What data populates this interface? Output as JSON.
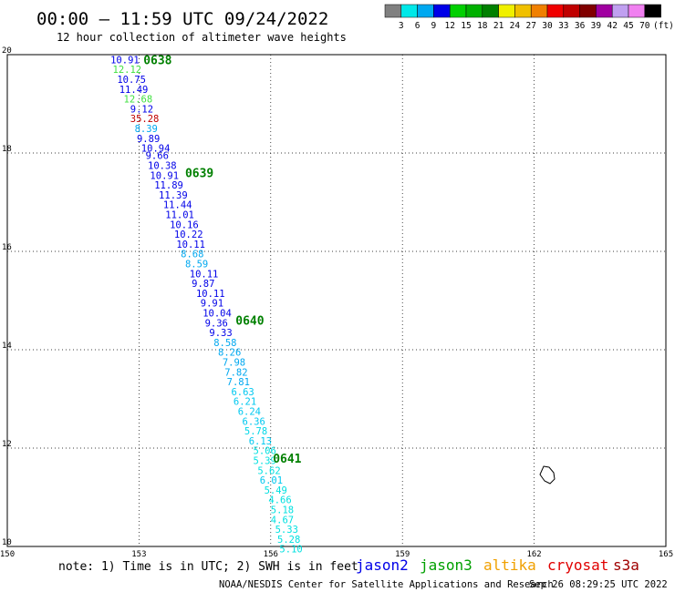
{
  "header": {
    "title": "00:00 – 11:59 UTC 09/24/2022",
    "subtitle": "12 hour collection of altimeter wave heights"
  },
  "legend": {
    "unit": "(ft)",
    "bins": [
      {
        "label": "3",
        "color": "#808080"
      },
      {
        "label": "6",
        "color": "#00e8e8"
      },
      {
        "label": "9",
        "color": "#00a8f0"
      },
      {
        "label": "12",
        "color": "#0000e8"
      },
      {
        "label": "15",
        "color": "#00d000"
      },
      {
        "label": "18",
        "color": "#00b000"
      },
      {
        "label": "21",
        "color": "#008000"
      },
      {
        "label": "24",
        "color": "#f0f000"
      },
      {
        "label": "27",
        "color": "#f0c000"
      },
      {
        "label": "30",
        "color": "#f08000"
      },
      {
        "label": "33",
        "color": "#f00000"
      },
      {
        "label": "36",
        "color": "#c00000"
      },
      {
        "label": "39",
        "color": "#800000"
      },
      {
        "label": "42",
        "color": "#a000a0"
      },
      {
        "label": "45",
        "color": "#c0a0f0"
      },
      {
        "label": "70",
        "color": "#f080f0"
      },
      {
        "label": "",
        "color": "#000000"
      }
    ]
  },
  "map": {
    "x_ticks": [
      "150",
      "153",
      "156",
      "159",
      "162",
      "165"
    ],
    "y_ticks": [
      "20",
      "18",
      "16",
      "14",
      "12",
      "10"
    ],
    "lon_range": [
      150,
      165
    ],
    "lat_range": [
      10,
      20
    ],
    "grid": "dotted"
  },
  "track": {
    "time_labels": [
      {
        "text": "0638",
        "lon": 153.1,
        "lat": 19.9
      },
      {
        "text": "0639",
        "lon": 154.05,
        "lat": 17.6
      },
      {
        "text": "0640",
        "lon": 155.2,
        "lat": 14.6
      },
      {
        "text": "0641",
        "lon": 156.05,
        "lat": 11.8
      }
    ],
    "points": [
      {
        "v": "10.91",
        "lon": 152.35,
        "lat": 19.9,
        "color": "#0000e8"
      },
      {
        "v": "12.12",
        "lon": 152.4,
        "lat": 19.7,
        "color": "#40e040"
      },
      {
        "v": "10.75",
        "lon": 152.5,
        "lat": 19.5,
        "color": "#0000e8"
      },
      {
        "v": "11.49",
        "lon": 152.55,
        "lat": 19.3,
        "color": "#0000e8"
      },
      {
        "v": "12.68",
        "lon": 152.65,
        "lat": 19.1,
        "color": "#40e040"
      },
      {
        "v": "9.12",
        "lon": 152.8,
        "lat": 18.9,
        "color": "#0000e8"
      },
      {
        "v": "35.28",
        "lon": 152.8,
        "lat": 18.7,
        "color": "#c00000"
      },
      {
        "v": "8.39",
        "lon": 152.9,
        "lat": 18.5,
        "color": "#00a8f0"
      },
      {
        "v": "9.89",
        "lon": 152.95,
        "lat": 18.3,
        "color": "#0000e8"
      },
      {
        "v": "10.94",
        "lon": 153.05,
        "lat": 18.1,
        "color": "#0000e8"
      },
      {
        "v": "9.66",
        "lon": 153.15,
        "lat": 17.95,
        "color": "#0000e8"
      },
      {
        "v": "10.38",
        "lon": 153.2,
        "lat": 17.75,
        "color": "#0000e8"
      },
      {
        "v": "10.91",
        "lon": 153.25,
        "lat": 17.55,
        "color": "#0000e8"
      },
      {
        "v": "11.89",
        "lon": 153.35,
        "lat": 17.35,
        "color": "#0000e8"
      },
      {
        "v": "11.39",
        "lon": 153.45,
        "lat": 17.15,
        "color": "#0000e8"
      },
      {
        "v": "11.44",
        "lon": 153.55,
        "lat": 16.95,
        "color": "#0000e8"
      },
      {
        "v": "11.01",
        "lon": 153.6,
        "lat": 16.75,
        "color": "#0000e8"
      },
      {
        "v": "10.16",
        "lon": 153.7,
        "lat": 16.55,
        "color": "#0000e8"
      },
      {
        "v": "10.22",
        "lon": 153.8,
        "lat": 16.35,
        "color": "#0000e8"
      },
      {
        "v": "10.11",
        "lon": 153.85,
        "lat": 16.15,
        "color": "#0000e8"
      },
      {
        "v": "8.68",
        "lon": 153.95,
        "lat": 15.95,
        "color": "#00a8f0"
      },
      {
        "v": "8.59",
        "lon": 154.05,
        "lat": 15.75,
        "color": "#00a8f0"
      },
      {
        "v": "10.11",
        "lon": 154.15,
        "lat": 15.55,
        "color": "#0000e8"
      },
      {
        "v": "9.87",
        "lon": 154.2,
        "lat": 15.35,
        "color": "#0000e8"
      },
      {
        "v": "10.11",
        "lon": 154.3,
        "lat": 15.15,
        "color": "#0000e8"
      },
      {
        "v": "9.91",
        "lon": 154.4,
        "lat": 14.95,
        "color": "#0000e8"
      },
      {
        "v": "10.04",
        "lon": 154.45,
        "lat": 14.75,
        "color": "#0000e8"
      },
      {
        "v": "9.36",
        "lon": 154.5,
        "lat": 14.55,
        "color": "#0000e8"
      },
      {
        "v": "9.33",
        "lon": 154.6,
        "lat": 14.35,
        "color": "#0000e8"
      },
      {
        "v": "8.58",
        "lon": 154.7,
        "lat": 14.15,
        "color": "#00a8f0"
      },
      {
        "v": "8.26",
        "lon": 154.8,
        "lat": 13.95,
        "color": "#00a8f0"
      },
      {
        "v": "7.98",
        "lon": 154.9,
        "lat": 13.75,
        "color": "#00a8f0"
      },
      {
        "v": "7.82",
        "lon": 154.95,
        "lat": 13.55,
        "color": "#00a8f0"
      },
      {
        "v": "7.81",
        "lon": 155.0,
        "lat": 13.35,
        "color": "#00a8f0"
      },
      {
        "v": "6.63",
        "lon": 155.1,
        "lat": 13.15,
        "color": "#00c8f0"
      },
      {
        "v": "6.21",
        "lon": 155.15,
        "lat": 12.95,
        "color": "#00c8f0"
      },
      {
        "v": "6.24",
        "lon": 155.25,
        "lat": 12.75,
        "color": "#00c8f0"
      },
      {
        "v": "6.36",
        "lon": 155.35,
        "lat": 12.55,
        "color": "#00c8f0"
      },
      {
        "v": "5.78",
        "lon": 155.4,
        "lat": 12.35,
        "color": "#00d8e8"
      },
      {
        "v": "6.13",
        "lon": 155.5,
        "lat": 12.15,
        "color": "#00c8f0"
      },
      {
        "v": "5.06",
        "lon": 155.6,
        "lat": 11.95,
        "color": "#00e0e0"
      },
      {
        "v": "5.39",
        "lon": 155.6,
        "lat": 11.75,
        "color": "#00e0e0"
      },
      {
        "v": "5.62",
        "lon": 155.7,
        "lat": 11.55,
        "color": "#00e0e0"
      },
      {
        "v": "6.01",
        "lon": 155.75,
        "lat": 11.35,
        "color": "#00c8f0"
      },
      {
        "v": "5.49",
        "lon": 155.85,
        "lat": 11.15,
        "color": "#00e0e0"
      },
      {
        "v": "4.66",
        "lon": 155.95,
        "lat": 10.95,
        "color": "#00e0e0"
      },
      {
        "v": "5.18",
        "lon": 156.0,
        "lat": 10.75,
        "color": "#00e0e0"
      },
      {
        "v": "4.67",
        "lon": 156.0,
        "lat": 10.55,
        "color": "#00e0e0"
      },
      {
        "v": "5.33",
        "lon": 156.1,
        "lat": 10.35,
        "color": "#00e0e0"
      },
      {
        "v": "5.28",
        "lon": 156.15,
        "lat": 10.15,
        "color": "#00e0e0"
      },
      {
        "v": "5.10",
        "lon": 156.2,
        "lat": 9.95,
        "color": "#00e0e0"
      }
    ]
  },
  "footer": {
    "note": "note: 1) Time is in UTC; 2) SWH is in feet",
    "satellites": [
      {
        "name": "jason2",
        "color": "#0000e8"
      },
      {
        "name": "jason3",
        "color": "#00a000"
      },
      {
        "name": "altika",
        "color": "#f0a000"
      },
      {
        "name": "cryosat",
        "color": "#e00000"
      },
      {
        "name": "s3a",
        "color": "#a00000"
      }
    ],
    "credit": "NOAA/NESDIS Center for Satellite Applications and Research",
    "generated": "Sep 26 08:29:25 UTC 2022"
  }
}
